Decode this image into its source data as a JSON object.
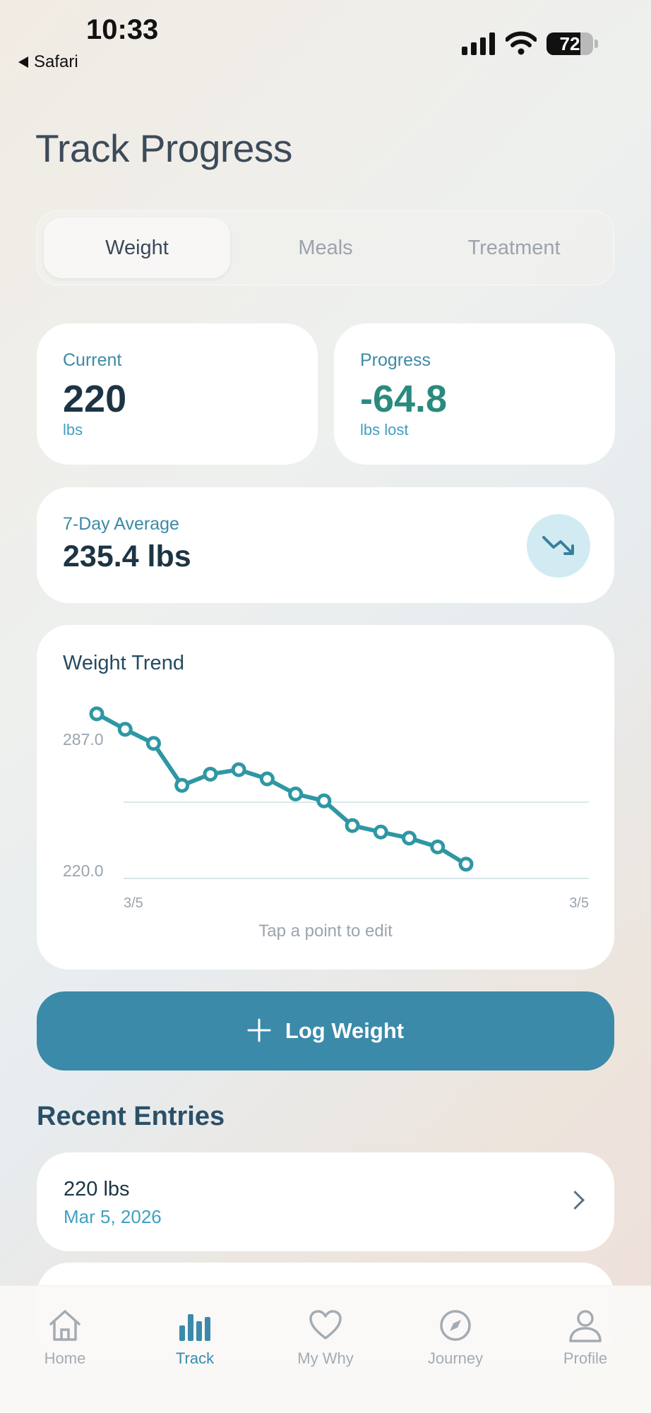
{
  "status_bar": {
    "time": "10:33",
    "back_label": "Safari",
    "battery": "72"
  },
  "page": {
    "title": "Track Progress"
  },
  "tabs": [
    {
      "label": "Weight",
      "active": true
    },
    {
      "label": "Meals",
      "active": false
    },
    {
      "label": "Treatment",
      "active": false
    }
  ],
  "current": {
    "label": "Current",
    "value": "220",
    "unit": "lbs"
  },
  "progress": {
    "label": "Progress",
    "value": "-64.8",
    "unit": "lbs lost"
  },
  "average": {
    "label": "7-Day Average",
    "value": "235.4 lbs",
    "icon": "trending-down-icon"
  },
  "trend": {
    "title": "Weight Trend",
    "hint": "Tap a point to edit",
    "y_top_label": "287.0",
    "y_bottom_label": "220.0",
    "x_start_label": "3/5",
    "x_end_label": "3/5"
  },
  "chart_data": {
    "type": "line",
    "title": "Weight Trend",
    "xlabel": "",
    "ylabel": "",
    "yticks": [
      287.0,
      220.0
    ],
    "xticks": [
      "3/5",
      "3/5"
    ],
    "series": [
      {
        "values": [
          292.1,
          284.2,
          277.0,
          255.6,
          261.3,
          263.6,
          258.9,
          251.2,
          247.7,
          235.1,
          231.8,
          228.7,
          224.2,
          215.4
        ]
      }
    ],
    "grid": true,
    "color": "#2e97a3"
  },
  "log_button": {
    "label": "Log Weight"
  },
  "recent": {
    "title": "Recent Entries",
    "entries": [
      {
        "weight": "220 lbs",
        "date": "Mar 5, 2026"
      }
    ]
  },
  "nav": [
    {
      "label": "Home",
      "icon": "home-icon"
    },
    {
      "label": "Track",
      "icon": "bar-chart-icon",
      "active": true
    },
    {
      "label": "My Why",
      "icon": "heart-icon"
    },
    {
      "label": "Journey",
      "icon": "compass-icon"
    },
    {
      "label": "Profile",
      "icon": "person-icon"
    }
  ]
}
